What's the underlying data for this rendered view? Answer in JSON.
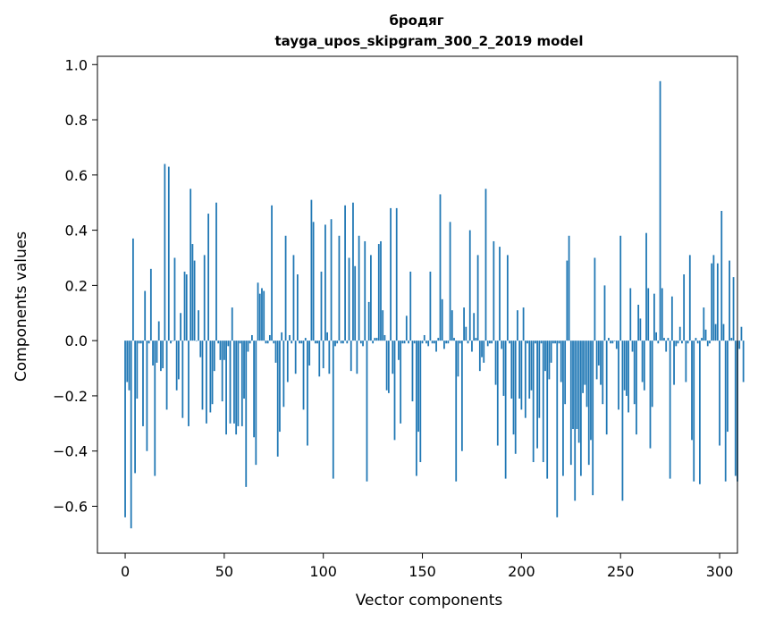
{
  "chart_data": {
    "type": "bar",
    "title": "бродяг",
    "subtitle": "tayga_upos_skipgram_300_2_2019 model",
    "xlabel": "Vector components",
    "ylabel": "Components values",
    "xlim": [
      -14,
      309
    ],
    "ylim": [
      -0.77,
      1.03
    ],
    "xticks": [
      0,
      50,
      100,
      150,
      200,
      250,
      300
    ],
    "yticks": [
      -0.6,
      -0.4,
      -0.2,
      0.0,
      0.2,
      0.4,
      0.6,
      0.8,
      1.0
    ],
    "ytick_labels": [
      "−0.6",
      "−0.4",
      "−0.2",
      "0.0",
      "0.2",
      "0.4",
      "0.6",
      "0.8",
      "1.0"
    ],
    "bar_color": "#1f77b4",
    "values": [
      -0.64,
      -0.15,
      -0.18,
      -0.68,
      0.37,
      -0.48,
      -0.21,
      -0.01,
      -0.01,
      -0.31,
      0.18,
      -0.4,
      -0.01,
      0.26,
      -0.09,
      -0.49,
      -0.08,
      0.07,
      -0.11,
      -0.1,
      0.64,
      -0.25,
      0.63,
      -0.01,
      0.0,
      0.3,
      -0.18,
      -0.14,
      0.1,
      -0.28,
      0.25,
      0.24,
      -0.31,
      0.55,
      0.35,
      0.29,
      0.0,
      0.11,
      -0.06,
      -0.25,
      0.31,
      -0.3,
      0.46,
      -0.26,
      -0.23,
      -0.11,
      0.5,
      -0.01,
      -0.07,
      -0.22,
      -0.07,
      -0.34,
      -0.02,
      -0.3,
      0.12,
      -0.3,
      -0.34,
      -0.31,
      -0.01,
      -0.31,
      -0.21,
      -0.53,
      -0.04,
      -0.01,
      0.02,
      -0.35,
      -0.45,
      0.21,
      0.17,
      0.19,
      0.18,
      -0.01,
      -0.01,
      0.02,
      0.49,
      -0.01,
      -0.08,
      -0.42,
      -0.33,
      0.03,
      -0.24,
      0.38,
      -0.15,
      0.02,
      -0.01,
      0.31,
      -0.12,
      0.24,
      -0.01,
      -0.01,
      -0.25,
      0.01,
      -0.38,
      -0.09,
      0.51,
      0.43,
      -0.01,
      -0.01,
      -0.13,
      0.25,
      -0.1,
      0.42,
      0.03,
      -0.12,
      0.44,
      -0.5,
      -0.02,
      -0.01,
      0.38,
      -0.01,
      -0.01,
      0.49,
      -0.01,
      0.3,
      -0.11,
      0.5,
      0.27,
      -0.12,
      0.38,
      -0.01,
      -0.02,
      0.36,
      -0.51,
      0.14,
      0.31,
      -0.01,
      0.01,
      0.01,
      0.35,
      0.36,
      0.11,
      0.02,
      -0.18,
      -0.19,
      0.48,
      -0.12,
      -0.36,
      0.48,
      -0.07,
      -0.3,
      -0.01,
      -0.01,
      0.09,
      -0.01,
      0.25,
      -0.22,
      -0.01,
      -0.49,
      -0.33,
      -0.44,
      -0.01,
      0.02,
      -0.01,
      -0.02,
      0.25,
      -0.01,
      -0.01,
      -0.04,
      0.01,
      0.53,
      0.15,
      -0.03,
      -0.01,
      -0.01,
      0.43,
      0.11,
      0.01,
      -0.51,
      -0.13,
      -0.01,
      -0.4,
      0.12,
      0.05,
      -0.01,
      0.4,
      -0.04,
      0.1,
      0.01,
      0.31,
      -0.11,
      -0.06,
      -0.08,
      0.55,
      -0.02,
      -0.01,
      -0.01,
      0.36,
      -0.16,
      -0.38,
      0.34,
      -0.03,
      -0.2,
      -0.5,
      0.31,
      -0.01,
      -0.21,
      -0.34,
      -0.41,
      0.11,
      -0.21,
      -0.25,
      0.12,
      -0.28,
      -0.01,
      -0.21,
      -0.18,
      -0.44,
      -0.01,
      -0.39,
      -0.28,
      -0.01,
      -0.44,
      -0.11,
      -0.5,
      -0.14,
      -0.08,
      -0.01,
      -0.01,
      -0.64,
      -0.01,
      -0.15,
      -0.49,
      -0.23,
      0.29,
      0.38,
      -0.45,
      -0.32,
      -0.58,
      -0.32,
      -0.37,
      -0.49,
      -0.19,
      -0.16,
      -0.24,
      -0.45,
      -0.36,
      -0.56,
      0.3,
      -0.14,
      -0.09,
      -0.16,
      -0.23,
      0.2,
      -0.34,
      0.01,
      -0.01,
      -0.01,
      0.0,
      -0.03,
      -0.25,
      0.38,
      -0.58,
      -0.18,
      -0.2,
      -0.26,
      0.19,
      -0.04,
      -0.23,
      -0.34,
      0.13,
      0.08,
      -0.15,
      -0.18,
      0.39,
      0.19,
      -0.39,
      -0.24,
      0.17,
      0.03,
      -0.01,
      0.94,
      0.19,
      0.01,
      -0.04,
      0.01,
      -0.5,
      0.16,
      -0.16,
      -0.02,
      -0.01,
      0.05,
      -0.01,
      0.24,
      -0.15,
      -0.01,
      0.31,
      -0.36,
      -0.51,
      0.01,
      -0.01,
      -0.52,
      0.01,
      0.12,
      0.04,
      -0.02,
      -0.01,
      0.28,
      0.31,
      0.06,
      0.28,
      -0.38,
      0.47,
      0.06,
      -0.51,
      -0.33,
      0.29,
      0.01,
      0.23,
      -0.49,
      -0.51,
      -0.03,
      0.05,
      -0.15
    ]
  }
}
